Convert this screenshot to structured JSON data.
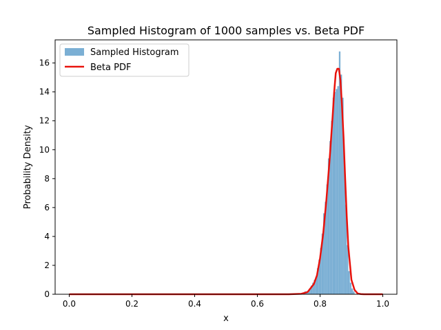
{
  "chart_data": {
    "type": "bar",
    "title": "Sampled Histogram of 1000 samples vs. Beta PDF",
    "xlabel": "x",
    "ylabel": "Probability Density",
    "xlim": [
      -0.045,
      1.045
    ],
    "ylim": [
      0,
      17.6
    ],
    "xticks": [
      0.0,
      0.2,
      0.4,
      0.6,
      0.8,
      1.0
    ],
    "xtick_labels": [
      "0.0",
      "0.2",
      "0.4",
      "0.6",
      "0.8",
      "1.0"
    ],
    "yticks": [
      0,
      2,
      4,
      6,
      8,
      10,
      12,
      14,
      16
    ],
    "ytick_labels": [
      "0",
      "2",
      "4",
      "6",
      "8",
      "10",
      "12",
      "14",
      "16"
    ],
    "grid": false,
    "legend_position": "upper left",
    "legend": [
      {
        "label": "Sampled Histogram",
        "kind": "patch",
        "color": "#7bafd4"
      },
      {
        "label": "Beta PDF",
        "kind": "line",
        "color": "#e8120c"
      }
    ],
    "histogram": {
      "name": "Sampled Histogram",
      "color": "#7bafd4",
      "bin_edges": [
        0.75,
        0.755,
        0.76,
        0.765,
        0.77,
        0.775,
        0.78,
        0.785,
        0.79,
        0.795,
        0.8,
        0.805,
        0.81,
        0.815,
        0.82,
        0.825,
        0.83,
        0.835,
        0.84,
        0.845,
        0.85,
        0.855,
        0.86,
        0.865,
        0.87,
        0.875,
        0.88,
        0.885,
        0.89,
        0.895,
        0.9,
        0.905,
        0.91
      ],
      "densities": [
        0.2,
        0.2,
        0.2,
        0.4,
        0.6,
        0.8,
        1.0,
        1.2,
        1.8,
        2.4,
        3.2,
        4.2,
        5.6,
        6.4,
        7.6,
        9.4,
        10.6,
        12.0,
        13.6,
        14.0,
        14.2,
        14.4,
        16.8,
        15.2,
        13.6,
        9.4,
        6.2,
        3.4,
        1.6,
        0.8,
        0.4,
        0.2
      ]
    },
    "pdf": {
      "name": "Beta PDF",
      "color": "#e8120c",
      "x": [
        0.0,
        0.1,
        0.2,
        0.3,
        0.4,
        0.5,
        0.6,
        0.7,
        0.74,
        0.76,
        0.78,
        0.79,
        0.8,
        0.81,
        0.82,
        0.83,
        0.84,
        0.845,
        0.85,
        0.855,
        0.86,
        0.865,
        0.87,
        0.875,
        0.88,
        0.885,
        0.89,
        0.9,
        0.91,
        0.92,
        0.93,
        0.94,
        1.0
      ],
      "y": [
        0,
        0,
        0,
        0,
        0,
        0,
        0,
        0,
        0.03,
        0.15,
        0.7,
        1.3,
        2.5,
        4.2,
        6.5,
        9.2,
        12.3,
        14.0,
        15.3,
        15.6,
        15.6,
        14.8,
        13.0,
        10.8,
        8.0,
        5.4,
        3.3,
        1.0,
        0.3,
        0.05,
        0.01,
        0,
        0
      ]
    }
  }
}
